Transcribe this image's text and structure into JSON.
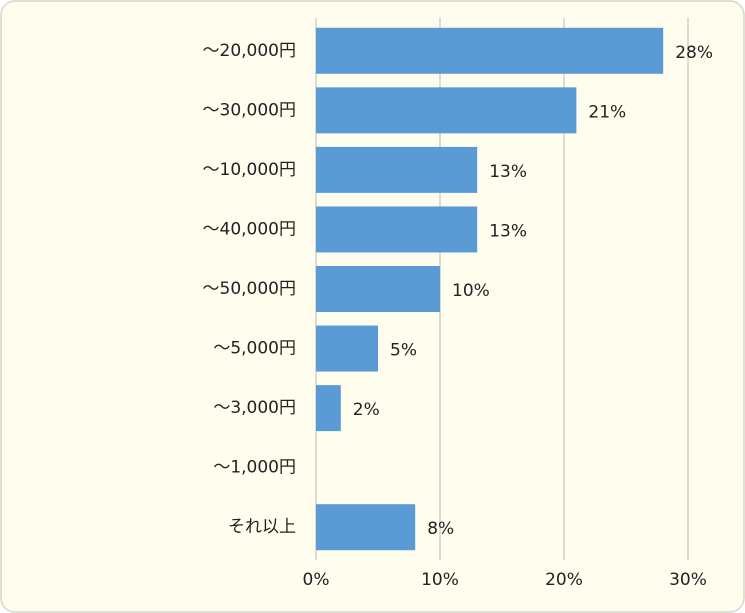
{
  "chart_data": {
    "type": "bar",
    "orientation": "horizontal",
    "categories": [
      "～20,000円",
      "～30,000円",
      "～10,000円",
      "～40,000円",
      "～50,000円",
      "～5,000円",
      "～3,000円",
      "～1,000円",
      "それ以上"
    ],
    "values": [
      28,
      21,
      13,
      13,
      10,
      5,
      2,
      0,
      8
    ],
    "value_labels": [
      "28%",
      "21%",
      "13%",
      "13%",
      "10%",
      "5%",
      "2%",
      null,
      "8%"
    ],
    "color": "#5b9bd5",
    "xlim": [
      0,
      30
    ],
    "xticks": [
      {
        "value": 0,
        "label": "0%"
      },
      {
        "value": 10,
        "label": "10%"
      },
      {
        "value": 20,
        "label": "20%"
      },
      {
        "value": 30,
        "label": "30%"
      }
    ],
    "grid": true
  }
}
